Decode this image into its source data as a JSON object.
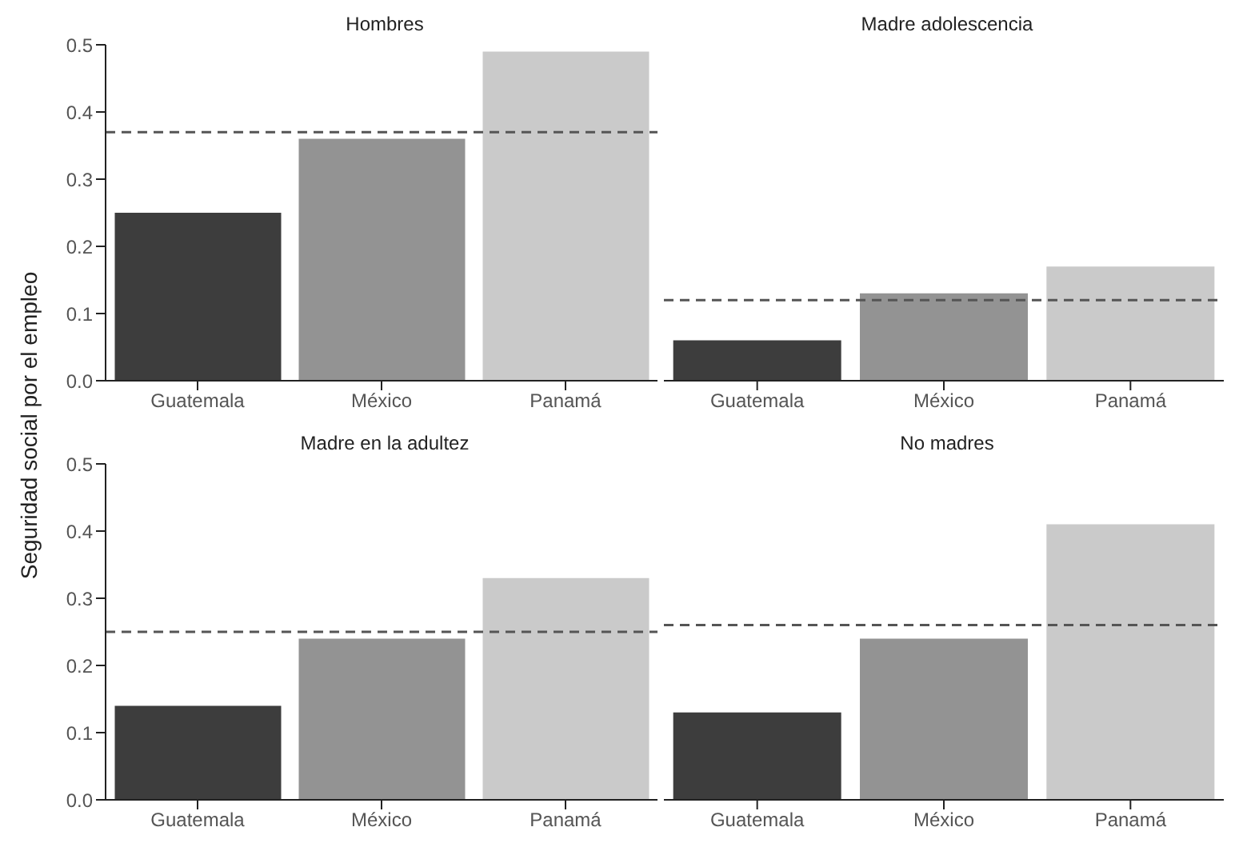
{
  "chart_data": [
    {
      "type": "bar",
      "title": "Hombres",
      "ylabel": "Seguridad social por el empleo",
      "categories": [
        "Guatemala",
        "México",
        "Panamá"
      ],
      "values": [
        0.25,
        0.36,
        0.49
      ],
      "colors": [
        "#3d3d3d",
        "#939393",
        "#cacaca"
      ],
      "ylim": [
        0,
        0.5
      ],
      "yticks": [
        {
          "value": 0,
          "label": "0.0"
        },
        0.1,
        0.2,
        0.3,
        0.4,
        0.5
      ],
      "ref_lines": [
        {
          "axis": "y",
          "value": 0.37,
          "color": "#555555",
          "line_style": "dashed"
        }
      ]
    },
    {
      "type": "bar",
      "title": "Madre adolescencia",
      "categories": [
        "Guatemala",
        "México",
        "Panamá"
      ],
      "values": [
        0.06,
        0.13,
        0.17
      ],
      "colors": [
        "#3d3d3d",
        "#939393",
        "#cacaca"
      ],
      "ylim": [
        0,
        0.5
      ],
      "tick_labels": "x",
      "ref_lines": [
        {
          "axis": "y",
          "value": 0.12,
          "color": "#555555",
          "line_style": "dashed"
        }
      ]
    },
    {
      "type": "bar",
      "title": "Madre en la adultez",
      "categories": [
        "Guatemala",
        "México",
        "Panamá"
      ],
      "values": [
        0.14,
        0.24,
        0.33
      ],
      "colors": [
        "#3d3d3d",
        "#939393",
        "#cacaca"
      ],
      "ylim": [
        0,
        0.5
      ],
      "yticks": [
        {
          "value": 0,
          "label": "0.0"
        },
        0.1,
        0.2,
        0.3,
        0.4,
        0.5
      ],
      "ref_lines": [
        {
          "axis": "y",
          "value": 0.25,
          "color": "#555555",
          "line_style": "dashed"
        }
      ]
    },
    {
      "type": "bar",
      "title": "No madres",
      "categories": [
        "Guatemala",
        "México",
        "Panamá"
      ],
      "values": [
        0.13,
        0.24,
        0.41
      ],
      "colors": [
        "#3d3d3d",
        "#939393",
        "#cacaca"
      ],
      "ylim": [
        0,
        0.5
      ],
      "tick_labels": "x",
      "ref_lines": [
        {
          "axis": "y",
          "value": 0.26,
          "color": "#555555",
          "line_style": "dashed"
        }
      ]
    }
  ]
}
